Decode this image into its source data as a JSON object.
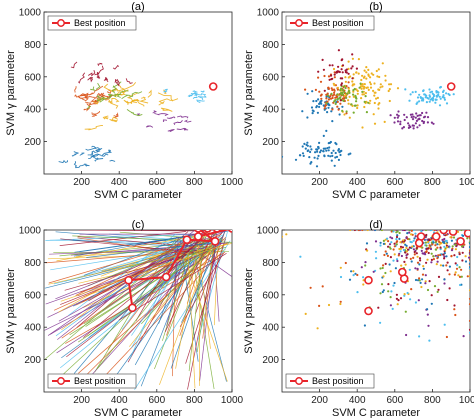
{
  "colors": {
    "best": "#e8242a",
    "series": [
      "#1f77b4",
      "#d95319",
      "#edb120",
      "#7e2f8e",
      "#77ac30",
      "#4dbeee",
      "#a2142f"
    ]
  },
  "chart_data": [
    {
      "type": "line",
      "panel": "(a)",
      "xlabel": "SVM C parameter",
      "ylabel": "SVM γ parameter",
      "xlim": [
        0,
        1000
      ],
      "ylim": [
        0,
        1000
      ],
      "xticks": [
        200,
        400,
        600,
        800,
        1000
      ],
      "yticks": [
        200,
        400,
        600,
        800,
        1000
      ],
      "legend": {
        "label": "Best position",
        "position": "top-left"
      },
      "best_position": [
        {
          "x": 900,
          "y": 540
        }
      ],
      "clusters": [
        {
          "color": 0,
          "cx": 240,
          "cy": 120,
          "sx": 120,
          "sy": 70,
          "n": 18
        },
        {
          "color": 1,
          "cx": 260,
          "cy": 450,
          "sx": 110,
          "sy": 80,
          "n": 22
        },
        {
          "color": 2,
          "cx": 430,
          "cy": 450,
          "sx": 200,
          "sy": 120,
          "n": 22
        },
        {
          "color": 3,
          "cx": 680,
          "cy": 330,
          "sx": 110,
          "sy": 50,
          "n": 12
        },
        {
          "color": 4,
          "cx": 330,
          "cy": 470,
          "sx": 130,
          "sy": 90,
          "n": 12
        },
        {
          "color": 5,
          "cx": 790,
          "cy": 480,
          "sx": 90,
          "sy": 40,
          "n": 12
        },
        {
          "color": 6,
          "cx": 300,
          "cy": 600,
          "sx": 110,
          "sy": 120,
          "n": 12
        }
      ]
    },
    {
      "type": "scatter",
      "panel": "(b)",
      "xlabel": "SVM C parameter",
      "ylabel": "SVM γ parameter",
      "xlim": [
        0,
        1000
      ],
      "ylim": [
        0,
        1000
      ],
      "xticks": [
        200,
        400,
        600,
        800,
        1000
      ],
      "yticks": [
        200,
        400,
        600,
        800,
        1000
      ],
      "legend": {
        "label": "Best position",
        "position": "top-left"
      },
      "best_position": [
        {
          "x": 900,
          "y": 540
        }
      ],
      "clusters": [
        {
          "color": 0,
          "cx": 220,
          "cy": 140,
          "sx": 120,
          "sy": 80,
          "n": 70
        },
        {
          "color": 0,
          "cx": 220,
          "cy": 420,
          "sx": 100,
          "sy": 90,
          "n": 50
        },
        {
          "color": 1,
          "cx": 280,
          "cy": 500,
          "sx": 110,
          "sy": 120,
          "n": 70
        },
        {
          "color": 2,
          "cx": 430,
          "cy": 520,
          "sx": 160,
          "sy": 160,
          "n": 120
        },
        {
          "color": 3,
          "cx": 700,
          "cy": 330,
          "sx": 110,
          "sy": 50,
          "n": 50
        },
        {
          "color": 4,
          "cx": 330,
          "cy": 480,
          "sx": 120,
          "sy": 90,
          "n": 50
        },
        {
          "color": 5,
          "cx": 800,
          "cy": 480,
          "sx": 110,
          "sy": 50,
          "n": 70
        },
        {
          "color": 6,
          "cx": 300,
          "cy": 620,
          "sx": 90,
          "sy": 110,
          "n": 40
        }
      ]
    },
    {
      "type": "line",
      "panel": "(c)",
      "xlabel": "SVM C parameter",
      "ylabel": "SVM γ parameter",
      "xlim": [
        0,
        1000
      ],
      "ylim": [
        0,
        1000
      ],
      "xticks": [
        200,
        400,
        600,
        800,
        1000
      ],
      "yticks": [
        200,
        400,
        600,
        800,
        1000
      ],
      "legend": {
        "label": "Best position",
        "position": "bottom-left"
      },
      "best_position": [
        {
          "x": 470,
          "y": 520
        },
        {
          "x": 450,
          "y": 690
        },
        {
          "x": 650,
          "y": 710
        },
        {
          "x": 760,
          "y": 940
        },
        {
          "x": 910,
          "y": 930
        },
        {
          "x": 820,
          "y": 1010
        },
        {
          "x": 870,
          "y": 1010
        },
        {
          "x": 920,
          "y": 1010
        },
        {
          "x": 1000,
          "y": 1010
        },
        {
          "x": 820,
          "y": 960
        }
      ],
      "fan": {
        "n": 150,
        "origin_x": [
          700,
          1000
        ],
        "origin_y": [
          850,
          1000
        ]
      }
    },
    {
      "type": "scatter",
      "panel": "(d)",
      "xlabel": "SVM C parameter",
      "ylabel": "SVM γ parameter",
      "xlim": [
        0,
        1000
      ],
      "ylim": [
        0,
        1000
      ],
      "xticks": [
        200,
        400,
        600,
        800,
        1000
      ],
      "yticks": [
        200,
        400,
        600,
        800,
        1000
      ],
      "legend": {
        "label": "Best position",
        "position": "bottom-left"
      },
      "best_position": [
        {
          "x": 460,
          "y": 690
        },
        {
          "x": 460,
          "y": 500
        },
        {
          "x": 650,
          "y": 700
        },
        {
          "x": 640,
          "y": 740
        },
        {
          "x": 740,
          "y": 960
        },
        {
          "x": 820,
          "y": 960
        },
        {
          "x": 860,
          "y": 1000
        },
        {
          "x": 910,
          "y": 990
        },
        {
          "x": 950,
          "y": 930
        },
        {
          "x": 990,
          "y": 980
        },
        {
          "x": 730,
          "y": 920
        }
      ],
      "clusters": [
        {
          "color": -1,
          "cx": 700,
          "cy": 750,
          "sx": 450,
          "sy": 350,
          "n": 260
        },
        {
          "color": -1,
          "cx": 780,
          "cy": 920,
          "sx": 220,
          "sy": 100,
          "n": 260
        }
      ]
    }
  ]
}
